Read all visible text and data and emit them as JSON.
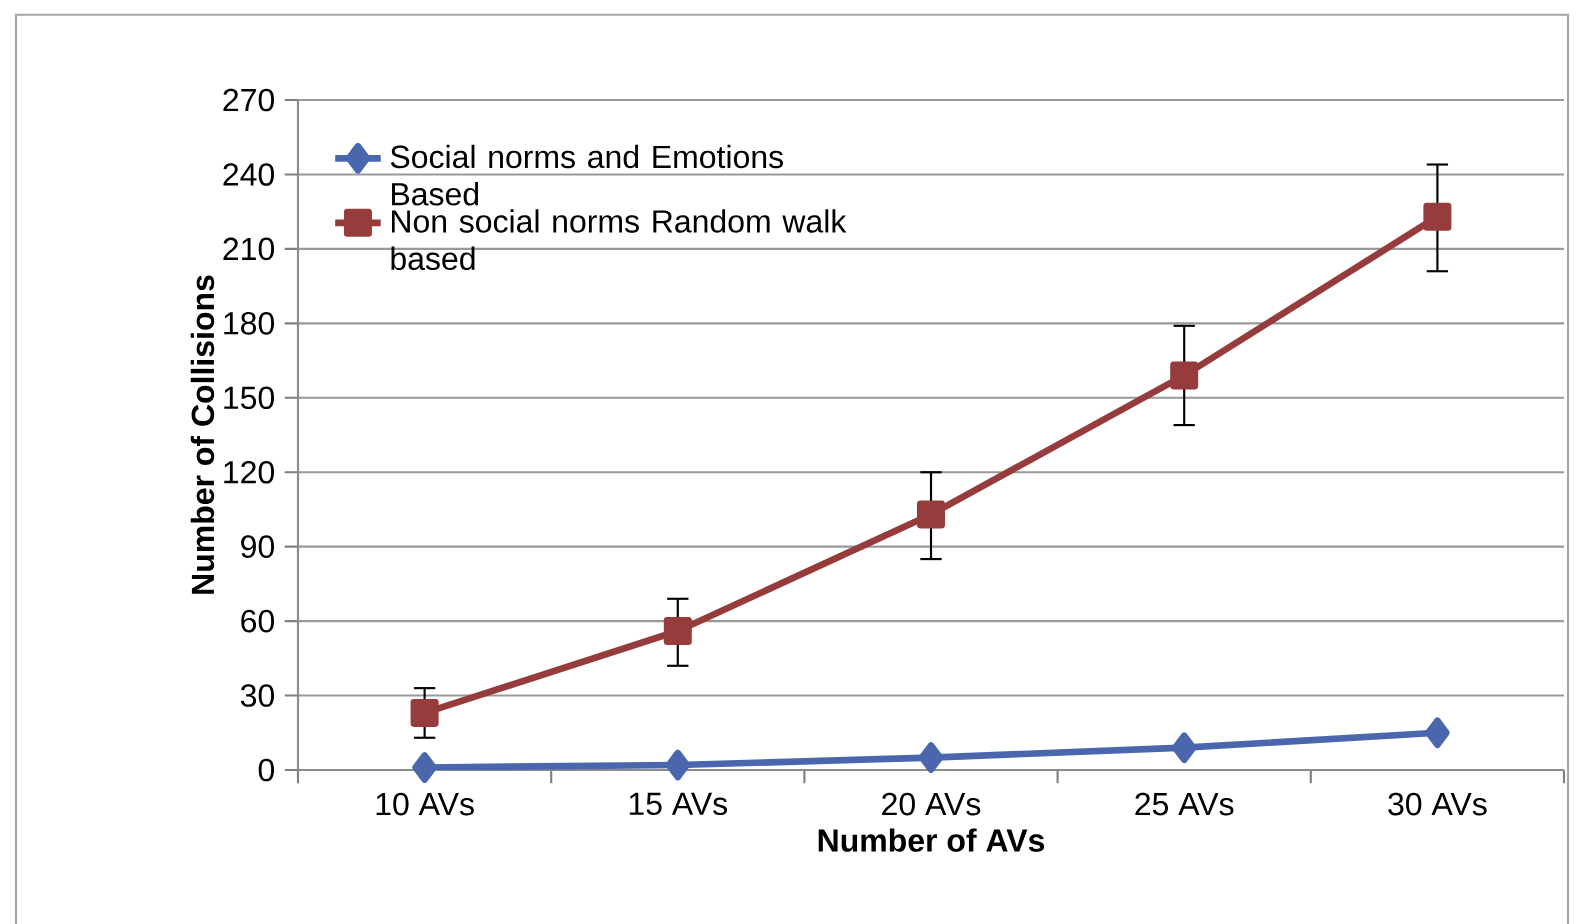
{
  "chart_data": {
    "type": "line",
    "xlabel": "Number of AVs",
    "ylabel": "Number of Collisions",
    "categories": [
      "10 AVs",
      "15 AVs",
      "20 AVs",
      "25 AVs",
      "30 AVs"
    ],
    "series": [
      {
        "name": "Social norms and Emotions Based",
        "color": "#4a66ac",
        "marker": "diamond",
        "values": [
          1,
          2,
          5,
          9,
          15
        ]
      },
      {
        "name": "Non social norms Random walk based",
        "color": "#963c3c",
        "marker": "square",
        "values": [
          23,
          56,
          103,
          159,
          223
        ],
        "errors": [
          [
            13,
            33
          ],
          [
            42,
            69
          ],
          [
            85,
            120
          ],
          [
            139,
            179
          ],
          [
            201,
            244
          ]
        ]
      }
    ],
    "ylim": [
      0,
      270
    ],
    "yticks": [
      0,
      30,
      60,
      90,
      120,
      150,
      180,
      210,
      240,
      270
    ],
    "grid": "y",
    "legend": "top left"
  }
}
